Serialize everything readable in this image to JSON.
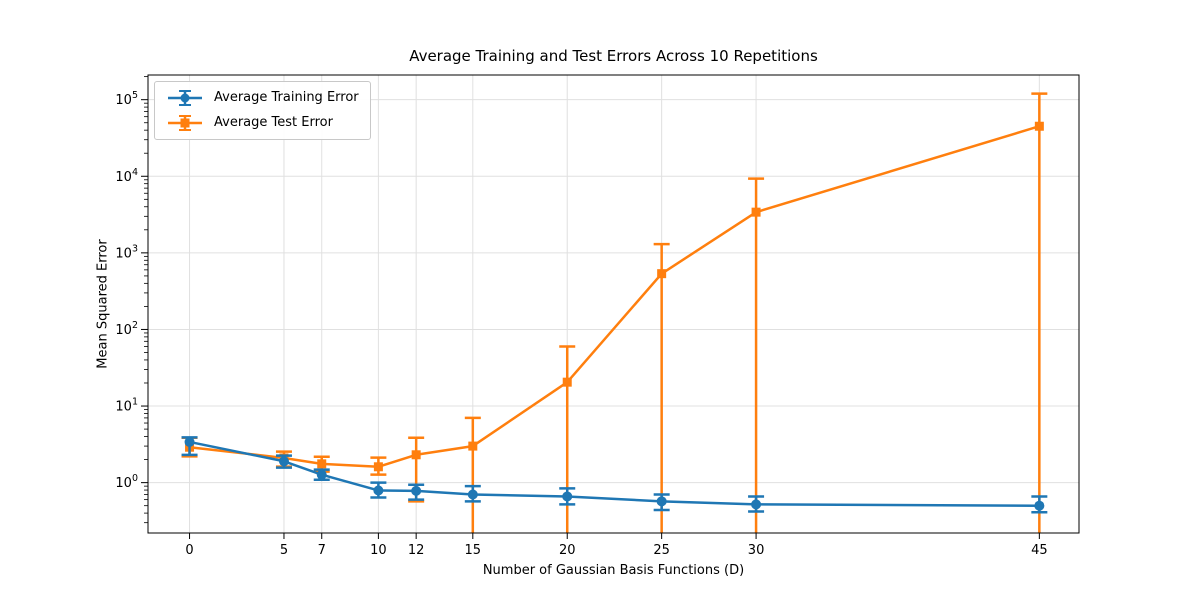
{
  "chart_data": {
    "type": "line",
    "title": "Average Training and Test Errors Across 10 Repetitions",
    "xlabel": "Number of Gaussian Basis Functions (D)",
    "ylabel": "Mean Squared Error",
    "x": [
      0,
      5,
      7,
      10,
      12,
      15,
      20,
      25,
      30,
      45
    ],
    "x_tick_labels": [
      "0",
      "5",
      "7",
      "10",
      "12",
      "15",
      "20",
      "25",
      "30",
      "45"
    ],
    "xlim": [
      -2.2,
      47.1
    ],
    "yscale": "log",
    "ylim": [
      0.22,
      210000
    ],
    "y_ticks": [
      1,
      10,
      100,
      1000,
      10000,
      100000
    ],
    "y_tick_labels": [
      "10^0",
      "10^1",
      "10^2",
      "10^3",
      "10^4",
      "10^5"
    ],
    "grid": true,
    "legend_position": "upper left",
    "series": [
      {
        "name": "Average Training Error",
        "color": "#1f77b4",
        "marker": "circle",
        "values": [
          3.4,
          1.9,
          1.27,
          0.79,
          0.78,
          0.7,
          0.66,
          0.57,
          0.52,
          0.5
        ],
        "err_low": [
          2.3,
          1.57,
          1.09,
          0.64,
          0.6,
          0.57,
          0.52,
          0.44,
          0.42,
          0.41
        ],
        "err_high": [
          3.9,
          2.25,
          1.48,
          1.0,
          0.94,
          0.9,
          0.84,
          0.7,
          0.66,
          0.66
        ]
      },
      {
        "name": "Average Test Error",
        "color": "#ff7f0e",
        "marker": "square",
        "values": [
          2.9,
          2.1,
          1.76,
          1.61,
          2.31,
          3.0,
          20.5,
          535,
          3400,
          45000
        ],
        "err_low": [
          2.2,
          1.62,
          1.39,
          1.27,
          0.57,
          null,
          null,
          null,
          null,
          null
        ],
        "err_high": [
          3.85,
          2.54,
          2.18,
          2.12,
          3.85,
          7.0,
          60,
          1300,
          9300,
          120000
        ]
      }
    ]
  }
}
